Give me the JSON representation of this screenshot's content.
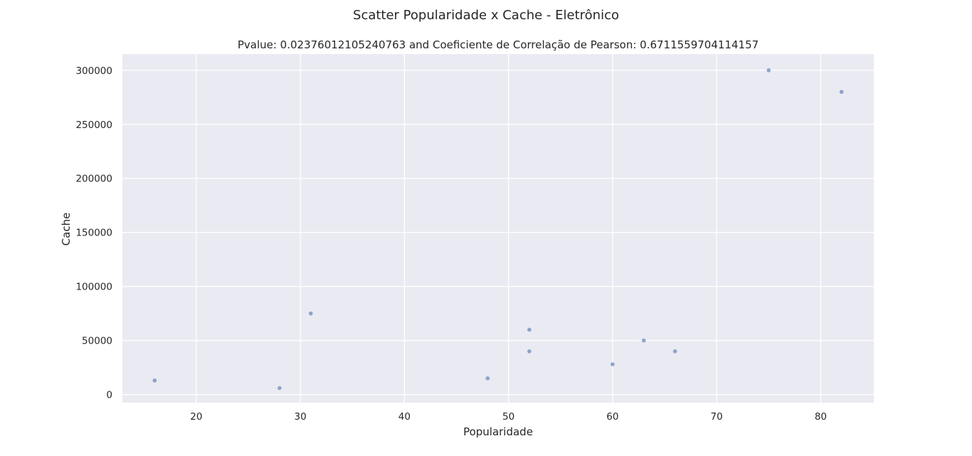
{
  "suptitle": "Scatter Popularidade x Cache - Eletrônico",
  "chart_data": {
    "type": "scatter",
    "title": "Pvalue: 0.02376012105240763 and Coeficiente de Correlação de Pearson: 0.6711559704114157",
    "xlabel": "Popularidade",
    "ylabel": "Cache",
    "xlim": [
      12.9,
      85.1
    ],
    "ylim": [
      -7500,
      315000
    ],
    "xticks": [
      20,
      30,
      40,
      50,
      60,
      70,
      80
    ],
    "yticks": [
      0,
      50000,
      100000,
      150000,
      200000,
      250000,
      300000
    ],
    "grid": true,
    "points": [
      {
        "x": 16,
        "y": 13000
      },
      {
        "x": 28,
        "y": 6000
      },
      {
        "x": 31,
        "y": 75000
      },
      {
        "x": 48,
        "y": 15000
      },
      {
        "x": 52,
        "y": 60000
      },
      {
        "x": 52,
        "y": 40000
      },
      {
        "x": 60,
        "y": 28000
      },
      {
        "x": 63,
        "y": 50000
      },
      {
        "x": 66,
        "y": 40000
      },
      {
        "x": 75,
        "y": 300000
      },
      {
        "x": 82,
        "y": 280000
      }
    ],
    "colors": {
      "background": "#eaeaf2",
      "grid": "#ffffff",
      "point": "#4c72b0"
    }
  }
}
